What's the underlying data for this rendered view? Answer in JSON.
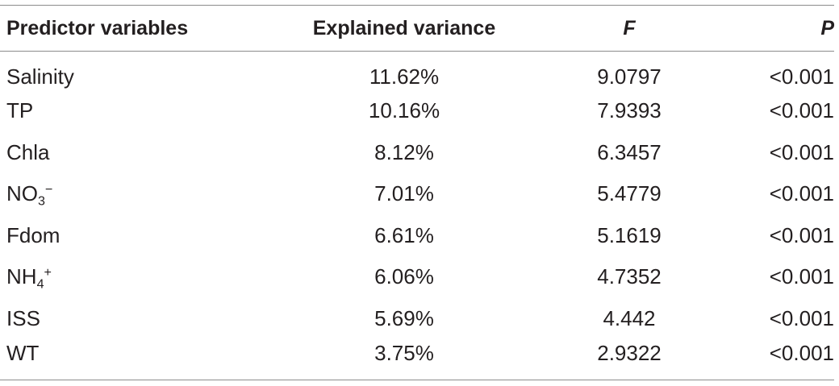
{
  "table": {
    "headers": [
      "Predictor variables",
      "Explained variance",
      "F",
      "P"
    ],
    "rows": [
      {
        "predictor": "Salinity",
        "variance": "11.62%",
        "f": "9.0797",
        "p": "<0.001"
      },
      {
        "predictor": "TP",
        "variance": "10.16%",
        "f": "7.9393",
        "p": "<0.001"
      },
      {
        "predictor": "Chla",
        "variance": "8.12%",
        "f": "6.3457",
        "p": "<0.001"
      },
      {
        "predictor_base": "NO",
        "predictor_sub": "3",
        "predictor_sup": "−",
        "variance": "7.01%",
        "f": "5.4779",
        "p": "<0.001"
      },
      {
        "predictor": "Fdom",
        "variance": "6.61%",
        "f": "5.1619",
        "p": "<0.001"
      },
      {
        "predictor_base": "NH",
        "predictor_sub": "4",
        "predictor_sup": "+",
        "variance": "6.06%",
        "f": "4.7352",
        "p": "<0.001"
      },
      {
        "predictor": "ISS",
        "variance": "5.69%",
        "f": "4.442",
        "p": "<0.001"
      },
      {
        "predictor": "WT",
        "variance": "3.75%",
        "f": "2.9322",
        "p": "<0.001"
      }
    ]
  }
}
